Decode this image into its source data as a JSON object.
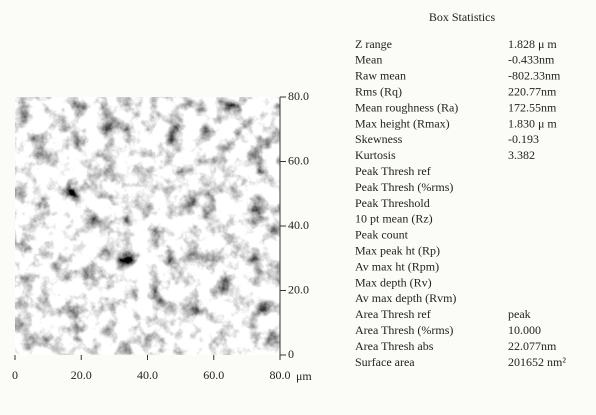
{
  "image": {
    "x_ticks": [
      "0",
      "20.0",
      "40.0",
      "60.0",
      "80.0"
    ],
    "x_unit": "μm",
    "y_ticks": [
      "80.0",
      "60.0",
      "40.0",
      "20.0",
      "0"
    ]
  },
  "stats": {
    "title": "Box Statistics",
    "rows": [
      {
        "label": "Z range",
        "value": "1.828 μ m"
      },
      {
        "label": "Mean",
        "value": "-0.433nm"
      },
      {
        "label": "Raw mean",
        "value": "-802.33nm"
      },
      {
        "label": "Rms (Rq)",
        "value": "220.77nm"
      },
      {
        "label": "Mean roughness (Ra)",
        "value": "172.55nm"
      },
      {
        "label": "Max height (Rmax)",
        "value": "1.830 μ m"
      },
      {
        "label": "Skewness",
        "value": "-0.193"
      },
      {
        "label": "Kurtosis",
        "value": "3.382"
      },
      {
        "label": "Peak Thresh ref"
      },
      {
        "label": "Peak Thresh (%rms)"
      },
      {
        "label": "Peak Threshold"
      },
      {
        "label": "10 pt mean  (Rz)"
      },
      {
        "label": "Peak count"
      },
      {
        "label": "Max peak ht (Rp)"
      },
      {
        "label": "Av max ht (Rpm)"
      },
      {
        "label": "Max depth (Rv)"
      },
      {
        "label": "Av max depth (Rvm)"
      },
      {
        "label": "Area Thresh ref",
        "value": "peak"
      },
      {
        "label": "Area Thresh (%rms)",
        "value": "10.000"
      },
      {
        "label": "Area Thresh abs",
        "value": "22.077nm"
      },
      {
        "label": "Surface area",
        "value": "201652 nm²"
      }
    ]
  }
}
